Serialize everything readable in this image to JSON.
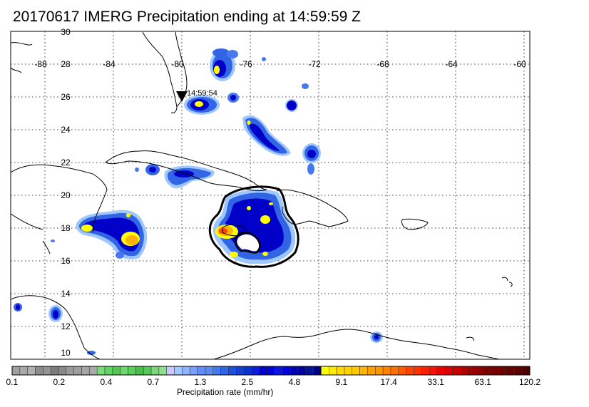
{
  "title": "20170617 IMERG Precipitation ending at 14:59:59 Z",
  "overpass_label": "14:59:54",
  "axes": {
    "lon_labels": [
      "-88",
      "-84",
      "-80",
      "-76",
      "-72",
      "-68",
      "-64",
      "-60"
    ],
    "lat_labels": [
      "30",
      "28",
      "26",
      "24",
      "22",
      "20",
      "18",
      "16",
      "14",
      "12",
      "10"
    ]
  },
  "legend": {
    "title": "Precipitation rate (mm/hr)",
    "tick_labels": [
      "0.1",
      "0.2",
      "0.4",
      "0.7",
      "1.3",
      "2.5",
      "4.8",
      "9.1",
      "17.4",
      "33.1",
      "63.1",
      "120.2"
    ],
    "colors": [
      "#a0a0a0",
      "#a8a8a8",
      "#b0b0b0",
      "#8c8c8c",
      "#949494",
      "#7c7c7c",
      "#888888",
      "#9a9a9a",
      "#9e9e9e",
      "#a4a4a4",
      "#aaaaaa",
      "#78dc78",
      "#64d264",
      "#50c850",
      "#6ed86e",
      "#5acd5a",
      "#46c046",
      "#58c858",
      "#7cd67c",
      "#90e090",
      "#c8c8ff",
      "#a0c8ff",
      "#8cb4ff",
      "#78a0ff",
      "#648cff",
      "#5a8cf0",
      "#4678f0",
      "#3264e6",
      "#1e50dc",
      "#1440d2",
      "#0a32dc",
      "#0a1edc",
      "#0000c8",
      "#0000d8",
      "#0a14e0",
      "#0000e6",
      "#0000b4",
      "#0000a0",
      "#001496",
      "#000080",
      "#ffff00",
      "#ffeb00",
      "#ffdc00",
      "#ffd200",
      "#ffc800",
      "#ffb400",
      "#ffa000",
      "#ff9600",
      "#ff8200",
      "#ff6e00",
      "#ff5a00",
      "#ff4600",
      "#ff3200",
      "#ff2000",
      "#ff1000",
      "#f00000",
      "#dc0000",
      "#c80000",
      "#b40000",
      "#a00000",
      "#900000",
      "#800000",
      "#780000",
      "#6e0000",
      "#640000",
      "#5a0000",
      "#500000"
    ]
  }
}
